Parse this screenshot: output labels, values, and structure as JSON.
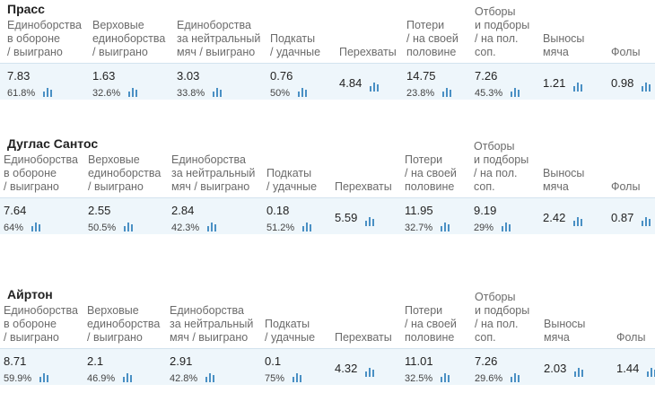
{
  "colors": {
    "band_bg": "#eef6fb",
    "band_border": "#d3e3ee",
    "icon_blue": "#4a90c4",
    "header_text": "#6b6b6b"
  },
  "headers": [
    [
      "Единоборства",
      "в обороне",
      "/ выиграно"
    ],
    [
      "Верховые",
      "единоборства",
      "/ выиграно"
    ],
    [
      "Единоборства",
      "за нейтральный",
      "мяч / выиграно"
    ],
    [
      "Подкаты",
      "/ удачные"
    ],
    [
      "Перехваты"
    ],
    [
      "Потери",
      "/ на своей",
      "половине"
    ],
    [
      "Отборы",
      "и подборы",
      "/ на пол.",
      "соп."
    ],
    [
      "Выносы",
      "мяча"
    ],
    [
      "Фолы"
    ]
  ],
  "players": [
    {
      "name": "Прасс",
      "stats": [
        {
          "value": "7.83",
          "percent": "61.8%"
        },
        {
          "value": "1.63",
          "percent": "32.6%"
        },
        {
          "value": "3.03",
          "percent": "33.8%"
        },
        {
          "value": "0.76",
          "percent": "50%"
        },
        {
          "value": "4.84",
          "percent": ""
        },
        {
          "value": "14.75",
          "percent": "23.8%"
        },
        {
          "value": "7.26",
          "percent": "45.3%"
        },
        {
          "value": "1.21",
          "percent": ""
        },
        {
          "value": "0.98",
          "percent": ""
        }
      ]
    },
    {
      "name": "Дуглас Сантос",
      "stats": [
        {
          "value": "7.64",
          "percent": "64%"
        },
        {
          "value": "2.55",
          "percent": "50.5%"
        },
        {
          "value": "2.84",
          "percent": "42.3%"
        },
        {
          "value": "0.18",
          "percent": "51.2%"
        },
        {
          "value": "5.59",
          "percent": ""
        },
        {
          "value": "11.95",
          "percent": "32.7%"
        },
        {
          "value": "9.19",
          "percent": "29%"
        },
        {
          "value": "2.42",
          "percent": ""
        },
        {
          "value": "0.87",
          "percent": ""
        }
      ]
    },
    {
      "name": "Айртон",
      "stats": [
        {
          "value": "8.71",
          "percent": "59.9%"
        },
        {
          "value": "2.1",
          "percent": "46.9%"
        },
        {
          "value": "2.91",
          "percent": "42.8%"
        },
        {
          "value": "0.1",
          "percent": "75%"
        },
        {
          "value": "4.32",
          "percent": ""
        },
        {
          "value": "11.01",
          "percent": "32.5%"
        },
        {
          "value": "7.26",
          "percent": "29.6%"
        },
        {
          "value": "2.03",
          "percent": ""
        },
        {
          "value": "1.44",
          "percent": ""
        }
      ]
    }
  ]
}
